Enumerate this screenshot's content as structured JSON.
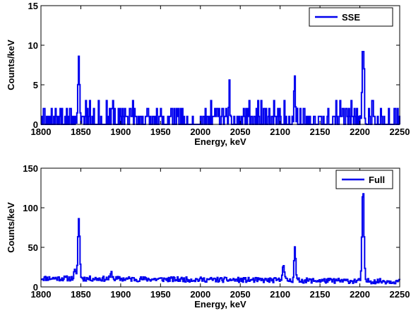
{
  "colors": {
    "series": "#0000ee",
    "axis": "#000000",
    "background": "#ffffff"
  },
  "chart_data": [
    {
      "type": "line",
      "title": "",
      "xlabel": "Energy, keV",
      "ylabel": "Counts/keV",
      "xlim": [
        1800,
        2250
      ],
      "ylim": [
        0,
        15
      ],
      "xticks": [
        1800,
        1850,
        1900,
        1950,
        2000,
        2050,
        2100,
        2150,
        2200,
        2250
      ],
      "yticks": [
        0,
        5,
        10,
        15
      ],
      "grid": false,
      "legend": {
        "placement": "top-right"
      },
      "series": [
        {
          "name": "SSE",
          "step": 1,
          "seed": 7,
          "baseline": {
            "levels": [
              0,
              0,
              0,
              0,
              1,
              1,
              2
            ],
            "spike_prob": 0.06,
            "spike_levels": [
              2,
              2,
              3
            ]
          },
          "peaks": [
            {
              "x": 1847,
              "height": 7.6,
              "sigma": 1.1
            },
            {
              "x": 2036,
              "height": 4.6,
              "sigma": 0.6
            },
            {
              "x": 2118,
              "height": 4.1,
              "sigma": 0.9
            },
            {
              "x": 2203.5,
              "height": 10.2,
              "sigma": 1.1
            }
          ]
        }
      ]
    },
    {
      "type": "line",
      "title": "",
      "xlabel": "Energy, keV",
      "ylabel": "Counts/keV",
      "xlim": [
        1800,
        2250
      ],
      "ylim": [
        0,
        150
      ],
      "xticks": [
        1800,
        1850,
        1900,
        1950,
        2000,
        2050,
        2100,
        2150,
        2200,
        2250
      ],
      "yticks": [
        0,
        50,
        100,
        150
      ],
      "grid": false,
      "legend": {
        "placement": "top-right"
      },
      "series": [
        {
          "name": "Full",
          "step": 1,
          "seed": 11,
          "baseline": {
            "start": 11,
            "end": 7,
            "noise": 3.2
          },
          "peaks": [
            {
              "x": 1842,
              "height": 10,
              "sigma": 1.0
            },
            {
              "x": 1847,
              "height": 75,
              "sigma": 1.2
            },
            {
              "x": 1888,
              "height": 7,
              "sigma": 1.2
            },
            {
              "x": 2103.5,
              "height": 21,
              "sigma": 1.2
            },
            {
              "x": 2118,
              "height": 43,
              "sigma": 1.0
            },
            {
              "x": 2203.5,
              "height": 117,
              "sigma": 1.2
            }
          ]
        }
      ]
    }
  ]
}
